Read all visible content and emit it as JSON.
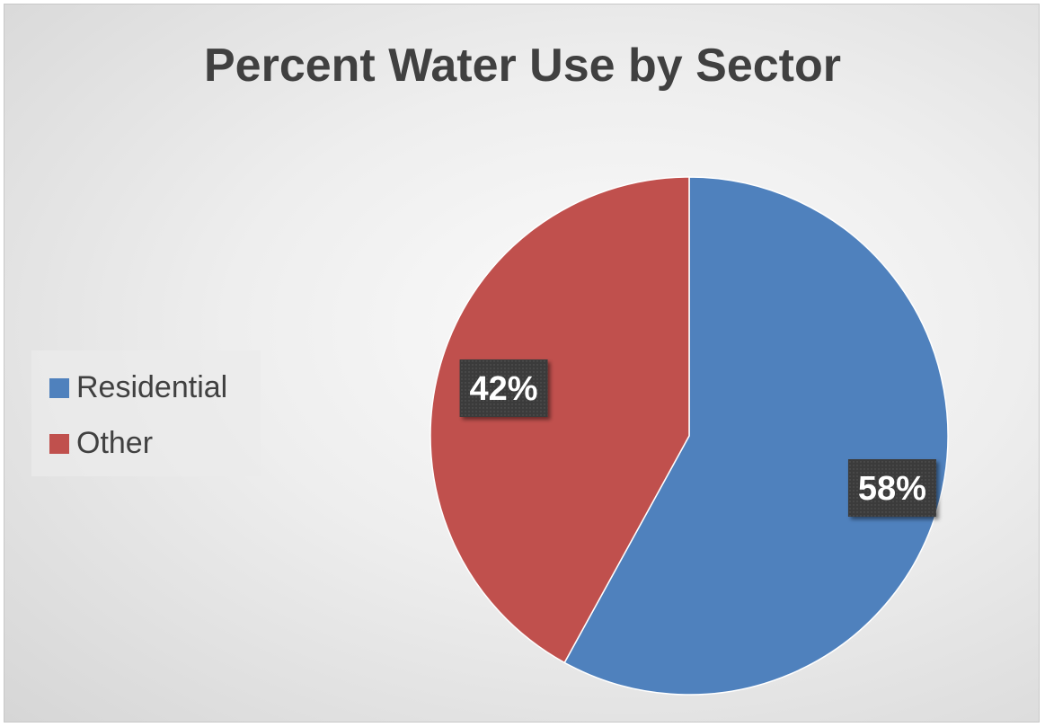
{
  "chart_data": {
    "type": "pie",
    "title": "Percent Water Use by Sector",
    "categories": [
      "Residential",
      "Other"
    ],
    "values": [
      58,
      42
    ],
    "data_labels": [
      "58%",
      "42%"
    ],
    "colors": [
      "#4f81bd",
      "#c0504d"
    ],
    "legend_position": "left"
  }
}
